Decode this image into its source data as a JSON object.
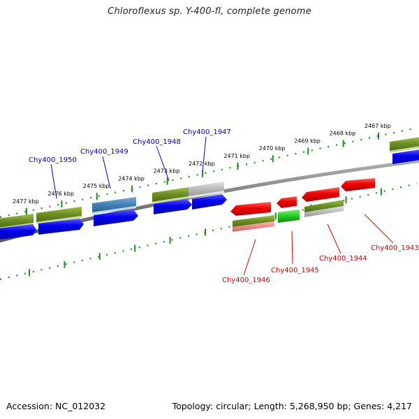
{
  "title": "Chloroflexus sp. Y-400-fl, complete genome",
  "footer": {
    "accession": "Accession: NC_012032",
    "topology": "Topology: circular; Length: 5,268,950 bp; Genes: 4,217"
  },
  "colors": {
    "backbone": "#7a7a7a",
    "tick": "#228b22",
    "tick_label": "#000000",
    "forward_label": "#0000aa",
    "reverse_label": "#cc0000",
    "cds_forward": "#0000ee",
    "gene_olive": "#6b8e23",
    "gene_gray": "#bbbbbb",
    "gene_steelblue": "#4682b4",
    "cds_reverse": "#ee0000",
    "cds_green": "#22cc22",
    "pseudo_salmon": "#ee8888"
  },
  "ticks": [
    "2477 kbp",
    "2476 kbp",
    "2475 kbp",
    "2474 kbp",
    "2473 kbp",
    "2472 kbp",
    "2471 kbp",
    "2470 kbp",
    "2469 kbp",
    "2468 kbp",
    "2467 kbp"
  ],
  "forward_labels": [
    "Chy400_1950",
    "Chy400_1949",
    "Chy400_1948",
    "Chy400_1947"
  ],
  "reverse_labels": [
    "Chy400_1946",
    "Chy400_1945",
    "Chy400_1944",
    "Chy400_1943"
  ]
}
